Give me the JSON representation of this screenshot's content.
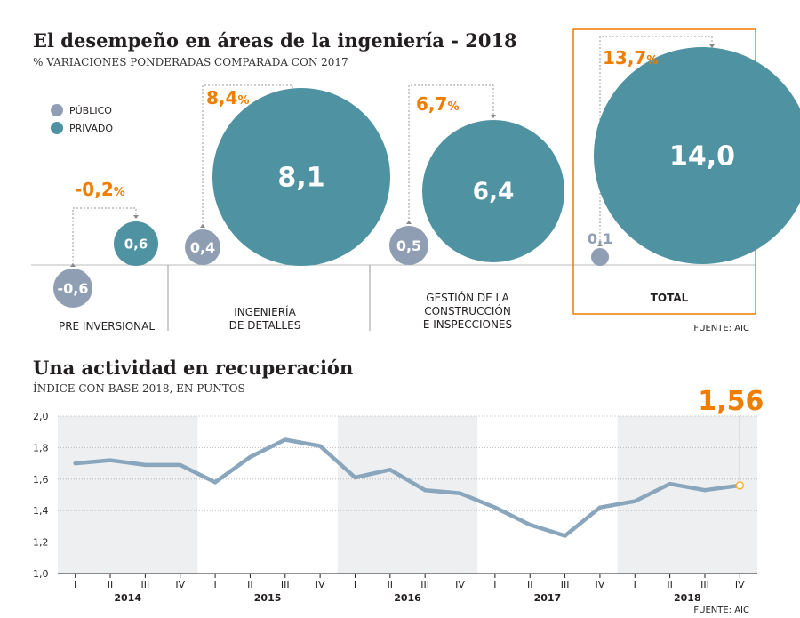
{
  "chart_data": [
    {
      "type": "bubble",
      "title": "El desempeño en áreas de la ingeniería - 2018",
      "subtitle": "% VARIACIONES PONDERADAS COMPARADA CON 2017",
      "legend": [
        {
          "name": "PÚBLICO",
          "color": "#8f9eb3"
        },
        {
          "name": "PRIVADO",
          "color": "#4f93a3"
        }
      ],
      "groups": [
        {
          "category": "PRE INVERSIONAL",
          "publico": "-0,6",
          "privado": "0,6",
          "variacion": "-0,2"
        },
        {
          "category": "INGENIERÍA\nDE DETALLES",
          "publico": "0,4",
          "privado": "8,1",
          "variacion": "8,4"
        },
        {
          "category": "GESTIÓN DE LA\nCONSTRUCCIÓN\nE INSPECCIONES",
          "publico": "0,5",
          "privado": "6,4",
          "variacion": "6,7"
        },
        {
          "category": "TOTAL",
          "publico": "0,1",
          "privado": "14,0",
          "variacion": "13,7"
        }
      ],
      "pct_symbol": "%",
      "source": "FUENTE: AIC"
    },
    {
      "type": "line",
      "title": "Una actividad en recuperación",
      "subtitle": "ÍNDICE CON BASE 2018, EN PUNTOS",
      "quarters": [
        "I",
        "II",
        "III",
        "IV",
        "I",
        "II",
        "III",
        "IV",
        "I",
        "II",
        "III",
        "IV",
        "I",
        "II",
        "III",
        "IV",
        "I",
        "II",
        "III",
        "IV"
      ],
      "years": [
        "2014",
        "2015",
        "2016",
        "2017",
        "2018"
      ],
      "values": [
        1.7,
        1.72,
        1.69,
        1.69,
        1.58,
        1.74,
        1.85,
        1.81,
        1.61,
        1.66,
        1.53,
        1.51,
        1.42,
        1.31,
        1.24,
        1.42,
        1.46,
        1.57,
        1.53,
        1.56
      ],
      "yticks": [
        "2,0",
        "1,8",
        "1,6",
        "1,4",
        "1,2",
        "1,0"
      ],
      "ylim": [
        1.0,
        2.0
      ],
      "last_value_label": "1,56",
      "source": "FUENTE: AIC",
      "colors": {
        "line": "#8aa6bd",
        "highlight": "#ef7d00",
        "band": "#eeeff1"
      }
    }
  ]
}
